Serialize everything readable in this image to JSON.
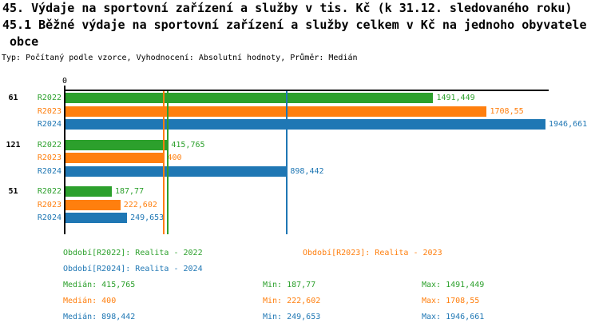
{
  "title": {
    "line1": "45. Výdaje na sportovní zařízení a služby v tis. Kč (k 31.12. sledovaného roku)",
    "line2": "45.1 Běžné výdaje na sportovní zařízení a služby celkem v Kč na jednoho obyvatele",
    "line3": " obce",
    "meta": "Typ: Počítaný podle vzorce, Vyhodnocení: Absolutní hodnoty, Průměr: Medián"
  },
  "colors": {
    "r2022": "#2ca02c",
    "r2023": "#ff7f0e",
    "r2024": "#1f77b4",
    "axis": "#000000"
  },
  "chart_data": {
    "type": "bar",
    "orientation": "horizontal",
    "x_origin_label": "0",
    "xlim": [
      0,
      1946.661
    ],
    "grid": false,
    "categories": [
      "61",
      "121",
      "51"
    ],
    "series": [
      {
        "name": "R2022",
        "color": "#2ca02c",
        "values": [
          1491.449,
          415.765,
          187.77
        ],
        "value_labels": [
          "1491,449",
          "415,765",
          "187,77"
        ],
        "median": 415.765,
        "min": 187.77,
        "max": 1491.449
      },
      {
        "name": "R2023",
        "color": "#ff7f0e",
        "values": [
          1708.55,
          400,
          222.602
        ],
        "value_labels": [
          "1708,55",
          "400",
          "222,602"
        ],
        "median": 400,
        "min": 222.602,
        "max": 1708.55
      },
      {
        "name": "R2024",
        "color": "#1f77b4",
        "values": [
          1946.661,
          898.442,
          249.653
        ],
        "value_labels": [
          "1946,661",
          "898,442",
          "249,653"
        ],
        "median": 898.442,
        "min": 249.653,
        "max": 1946.661
      }
    ],
    "median_lines_shown": true,
    "legend_position": "bottom"
  },
  "legend": {
    "r2022": "Období[R2022]: Realita - 2022",
    "r2023": "Období[R2023]: Realita - 2023",
    "r2024": "Období[R2024]: Realita - 2024"
  },
  "stats": {
    "rows": [
      {
        "median": "Medián: 415,765",
        "min": "Min: 187,77",
        "max": "Max: 1491,449"
      },
      {
        "median": "Medián: 400",
        "min": "Min: 222,602",
        "max": "Max: 1708,55"
      },
      {
        "median": "Medián: 898,442",
        "min": "Min: 249,653",
        "max": "Max: 1946,661"
      }
    ]
  }
}
